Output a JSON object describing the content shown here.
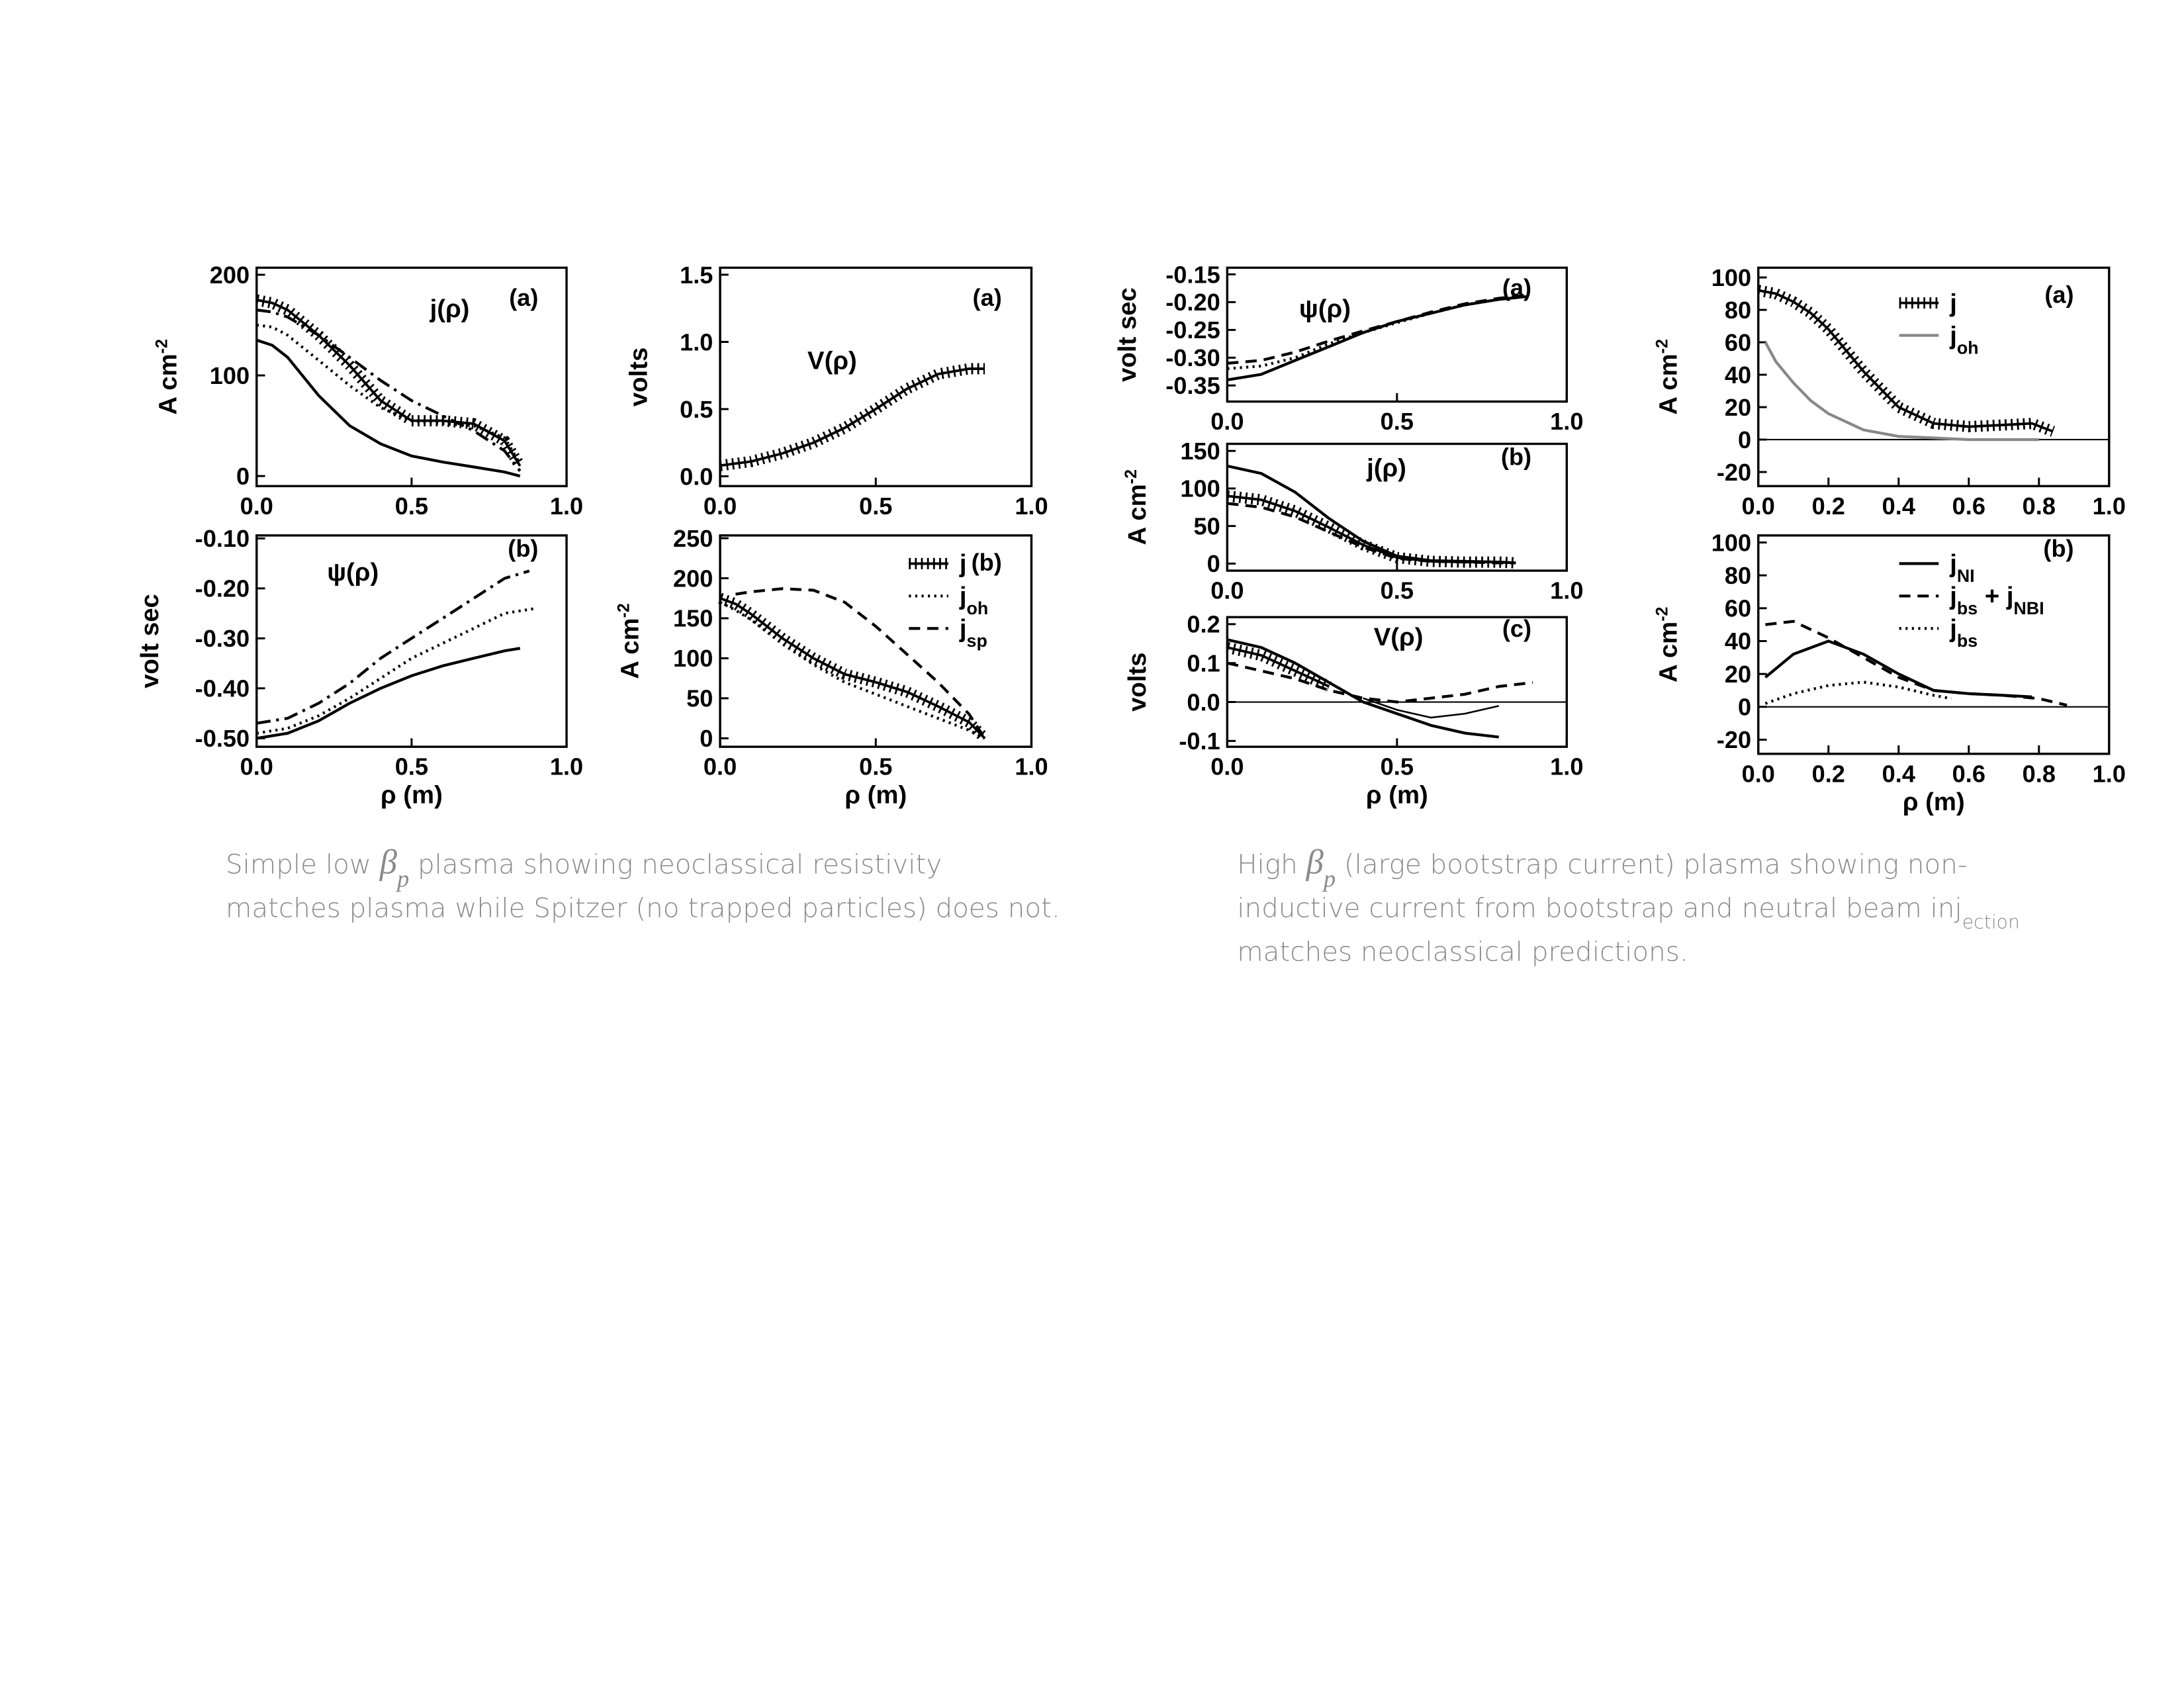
{
  "chart_data": [
    {
      "type": "line",
      "title": "j(ρ)",
      "panel": "(a)",
      "ylabel": "A cm-2",
      "xlim": [
        0,
        1
      ],
      "ylim": [
        -10,
        207
      ],
      "xticks": [
        {
          "value": 0,
          "label": "0.0"
        },
        0.5,
        {
          "value": 1,
          "label": "1.0"
        }
      ],
      "yticks": [
        0,
        100,
        200
      ],
      "series": [
        {
          "style": "solid",
          "color": "#000",
          "x": [
            0,
            0.05,
            0.1,
            0.2,
            0.3,
            0.4,
            0.5,
            0.6,
            0.7,
            0.8,
            0.85
          ],
          "values": [
            135,
            130,
            118,
            80,
            50,
            32,
            20,
            14,
            9,
            4,
            0
          ]
        },
        {
          "style": "hatched",
          "color": "#000",
          "x": [
            0,
            0.05,
            0.1,
            0.2,
            0.3,
            0.4,
            0.5,
            0.6,
            0.7,
            0.8,
            0.85
          ],
          "values": [
            175,
            172,
            165,
            140,
            110,
            75,
            55,
            55,
            52,
            35,
            10
          ]
        },
        {
          "style": "dashdot",
          "color": "#000",
          "x": [
            0,
            0.05,
            0.1,
            0.2,
            0.3,
            0.4,
            0.5,
            0.6,
            0.7,
            0.8,
            0.85
          ],
          "values": [
            165,
            163,
            158,
            140,
            118,
            95,
            75,
            60,
            45,
            25,
            5
          ]
        },
        {
          "style": "dotted",
          "color": "#000",
          "x": [
            0,
            0.05,
            0.1,
            0.2,
            0.3,
            0.4,
            0.5,
            0.6,
            0.7,
            0.8,
            0.85
          ],
          "values": [
            150,
            148,
            140,
            115,
            90,
            68,
            55,
            52,
            50,
            38,
            12
          ]
        }
      ]
    },
    {
      "type": "line",
      "title": "ψ(ρ)",
      "panel": "(b)",
      "ylabel": "volt sec",
      "xlabel": "ρ (m)",
      "xlim": [
        0,
        1
      ],
      "ylim": [
        -0.517,
        -0.094
      ],
      "xticks": [
        {
          "value": 0,
          "label": "0.0"
        },
        0.5,
        {
          "value": 1,
          "label": "1.0"
        }
      ],
      "yticks": [
        {
          "value": -0.1,
          "label": "-0.10"
        },
        {
          "value": -0.2,
          "label": "-0.20"
        },
        {
          "value": -0.3,
          "label": "-0.30"
        },
        {
          "value": -0.4,
          "label": "-0.40"
        },
        {
          "value": -0.5,
          "label": "-0.50"
        }
      ],
      "series": [
        {
          "style": "dashdot",
          "color": "#000",
          "x": [
            0,
            0.1,
            0.2,
            0.3,
            0.4,
            0.5,
            0.6,
            0.7,
            0.8,
            0.88
          ],
          "values": [
            -0.47,
            -0.46,
            -0.43,
            -0.39,
            -0.34,
            -0.3,
            -0.26,
            -0.22,
            -0.18,
            -0.165
          ]
        },
        {
          "style": "dotted",
          "color": "#000",
          "x": [
            0,
            0.1,
            0.2,
            0.3,
            0.4,
            0.5,
            0.6,
            0.7,
            0.8,
            0.9
          ],
          "values": [
            -0.49,
            -0.48,
            -0.455,
            -0.42,
            -0.38,
            -0.34,
            -0.31,
            -0.28,
            -0.25,
            -0.24
          ]
        },
        {
          "style": "solid",
          "color": "#000",
          "x": [
            0,
            0.1,
            0.2,
            0.3,
            0.4,
            0.5,
            0.6,
            0.7,
            0.8,
            0.85
          ],
          "values": [
            -0.5,
            -0.49,
            -0.465,
            -0.43,
            -0.4,
            -0.375,
            -0.355,
            -0.34,
            -0.325,
            -0.32
          ]
        }
      ]
    },
    {
      "type": "line",
      "title": "V(ρ)",
      "panel": "(a)",
      "ylabel": "volts",
      "xlim": [
        0,
        1
      ],
      "ylim": [
        -0.073,
        1.552
      ],
      "xticks": [
        {
          "value": 0,
          "label": "0.0"
        },
        0.5,
        {
          "value": 1,
          "label": "1.0"
        }
      ],
      "yticks": [
        {
          "value": 0,
          "label": "0.0"
        },
        0.5,
        {
          "value": 1,
          "label": "1.0"
        },
        1.5
      ],
      "series": [
        {
          "style": "hatched",
          "color": "#000",
          "x": [
            0,
            0.1,
            0.2,
            0.3,
            0.4,
            0.5,
            0.6,
            0.7,
            0.8,
            0.85
          ],
          "values": [
            0.08,
            0.11,
            0.17,
            0.25,
            0.36,
            0.5,
            0.65,
            0.76,
            0.8,
            0.8
          ]
        }
      ]
    },
    {
      "type": "line",
      "panel": "(b)",
      "ylabel": "A cm-2",
      "xlabel": "ρ (m)",
      "xlim": [
        0,
        1
      ],
      "ylim": [
        -10.6,
        253.5
      ],
      "xticks": [
        {
          "value": 0,
          "label": "0.0"
        },
        0.5,
        {
          "value": 1,
          "label": "1.0"
        }
      ],
      "yticks": [
        0,
        50,
        100,
        150,
        200,
        250
      ],
      "series": [
        {
          "name": "j",
          "style": "hatched",
          "color": "#000",
          "x": [
            0,
            0.05,
            0.1,
            0.2,
            0.3,
            0.4,
            0.5,
            0.6,
            0.7,
            0.8,
            0.85
          ],
          "values": [
            175,
            168,
            155,
            125,
            100,
            80,
            70,
            58,
            40,
            20,
            0
          ]
        },
        {
          "name": "joh",
          "style": "dotted",
          "color": "#000",
          "x": [
            0,
            0.05,
            0.1,
            0.2,
            0.3,
            0.4,
            0.5,
            0.6,
            0.7,
            0.8,
            0.85
          ],
          "values": [
            170,
            160,
            148,
            118,
            92,
            70,
            55,
            40,
            25,
            10,
            0
          ]
        },
        {
          "name": "jsp",
          "style": "dashed",
          "color": "#000",
          "x": [
            0.05,
            0.1,
            0.2,
            0.3,
            0.4,
            0.5,
            0.6,
            0.7,
            0.8,
            0.85
          ],
          "values": [
            180,
            183,
            187,
            185,
            170,
            140,
            105,
            70,
            30,
            0
          ]
        }
      ]
    },
    {
      "type": "line",
      "title": "ψ(ρ)",
      "panel": "(a)",
      "ylabel": "volt sec",
      "xlim": [
        0,
        1
      ],
      "ylim": [
        -0.379,
        -0.138
      ],
      "xticks": [
        {
          "value": 0,
          "label": "0.0"
        },
        0.5,
        {
          "value": 1,
          "label": "1.0"
        }
      ],
      "yticks": [
        -0.15,
        {
          "value": -0.2,
          "label": "-0.20"
        },
        -0.25,
        {
          "value": -0.3,
          "label": "-0.30"
        },
        -0.35
      ],
      "series": [
        {
          "style": "solid",
          "color": "#000",
          "x": [
            0,
            0.1,
            0.2,
            0.3,
            0.4,
            0.5,
            0.6,
            0.7,
            0.8,
            0.88
          ],
          "values": [
            -0.34,
            -0.33,
            -0.305,
            -0.28,
            -0.255,
            -0.235,
            -0.22,
            -0.205,
            -0.195,
            -0.19
          ]
        },
        {
          "style": "dashed",
          "color": "#000",
          "x": [
            0,
            0.1,
            0.2,
            0.3,
            0.4,
            0.5,
            0.6,
            0.7,
            0.8,
            0.88
          ],
          "values": [
            -0.31,
            -0.305,
            -0.29,
            -0.27,
            -0.252,
            -0.235,
            -0.218,
            -0.203,
            -0.193,
            -0.188
          ]
        },
        {
          "style": "dotted",
          "color": "#000",
          "x": [
            0,
            0.1,
            0.2,
            0.3,
            0.4,
            0.5,
            0.6,
            0.7,
            0.8,
            0.88
          ],
          "values": [
            -0.32,
            -0.315,
            -0.3,
            -0.275,
            -0.255,
            -0.237,
            -0.22,
            -0.205,
            -0.195,
            -0.19
          ]
        }
      ]
    },
    {
      "type": "line",
      "title": "j(ρ)",
      "panel": "(b)",
      "ylabel": "A cm-2",
      "xlim": [
        0,
        1
      ],
      "ylim": [
        -9.4,
        159.4
      ],
      "xticks": [
        {
          "value": 0,
          "label": "0.0"
        },
        0.5,
        {
          "value": 1,
          "label": "1.0"
        }
      ],
      "yticks": [
        0,
        50,
        100,
        150
      ],
      "series": [
        {
          "style": "solid",
          "color": "#000",
          "x": [
            0,
            0.1,
            0.2,
            0.3,
            0.4,
            0.5,
            0.6,
            0.7,
            0.8,
            0.85
          ],
          "values": [
            130,
            120,
            95,
            60,
            30,
            10,
            4,
            3,
            2,
            1
          ]
        },
        {
          "style": "hatched",
          "color": "#000",
          "x": [
            0,
            0.1,
            0.2,
            0.3,
            0.4,
            0.5,
            0.6,
            0.7,
            0.8,
            0.85
          ],
          "values": [
            90,
            85,
            70,
            48,
            25,
            8,
            3,
            2,
            2,
            1
          ]
        },
        {
          "style": "dashed",
          "color": "#000",
          "x": [
            0,
            0.1,
            0.2,
            0.3,
            0.4,
            0.5,
            0.6,
            0.7,
            0.8,
            0.85
          ],
          "values": [
            80,
            75,
            62,
            42,
            22,
            7,
            3,
            2,
            1,
            1
          ]
        }
      ]
    },
    {
      "type": "line",
      "title": "V(ρ)",
      "panel": "(c)",
      "ylabel": "volts",
      "xlabel": "ρ (m)",
      "zero_line": true,
      "xlim": [
        0,
        1
      ],
      "ylim": [
        -0.115,
        0.218
      ],
      "xticks": [
        {
          "value": 0,
          "label": "0.0"
        },
        0.5,
        {
          "value": 1,
          "label": "1.0"
        }
      ],
      "yticks": [
        -0.1,
        {
          "value": 0,
          "label": "0.0"
        },
        0.1,
        0.2
      ],
      "series": [
        {
          "style": "solid",
          "color": "#000",
          "x": [
            0,
            0.1,
            0.2,
            0.3,
            0.4,
            0.5,
            0.6,
            0.7,
            0.8
          ],
          "values": [
            0.16,
            0.14,
            0.1,
            0.05,
            0,
            -0.03,
            -0.06,
            -0.08,
            -0.09
          ]
        },
        {
          "style": "hatched",
          "color": "#000",
          "x": [
            0,
            0.1,
            0.2,
            0.3
          ],
          "values": [
            0.14,
            0.12,
            0.08,
            0.04
          ]
        },
        {
          "style": "dashed",
          "color": "#000",
          "x": [
            0,
            0.1,
            0.2,
            0.3,
            0.4,
            0.5,
            0.6,
            0.7,
            0.8,
            0.9
          ],
          "values": [
            0.1,
            0.08,
            0.06,
            0.03,
            0.01,
            0,
            0.01,
            0.02,
            0.04,
            0.05
          ]
        },
        {
          "style": "thin",
          "color": "#000",
          "x": [
            0.4,
            0.5,
            0.6,
            0.7,
            0.8
          ],
          "values": [
            0.01,
            -0.02,
            -0.04,
            -0.03,
            -0.01
          ]
        }
      ]
    },
    {
      "type": "line",
      "panel": "(a)",
      "ylabel": "A cm-2",
      "zero_line": true,
      "xlim": [
        0,
        1
      ],
      "ylim": [
        -28.7,
        106
      ],
      "xticks": [
        {
          "value": 0,
          "label": "0.0"
        },
        0.2,
        0.4,
        0.6,
        0.8,
        {
          "value": 1,
          "label": "1.0"
        }
      ],
      "yticks": [
        -20,
        0,
        20,
        40,
        60,
        80,
        100
      ],
      "series": [
        {
          "name": "j",
          "style": "hatched",
          "color": "#000",
          "x": [
            0,
            0.05,
            0.1,
            0.15,
            0.2,
            0.3,
            0.4,
            0.5,
            0.6,
            0.7,
            0.78,
            0.84
          ],
          "values": [
            92,
            90,
            85,
            78,
            68,
            42,
            20,
            10,
            8,
            9,
            10,
            5
          ]
        },
        {
          "name": "joh",
          "style": "solid",
          "color": "#888888",
          "x": [
            0.02,
            0.05,
            0.1,
            0.15,
            0.2,
            0.3,
            0.4,
            0.5,
            0.6,
            0.8
          ],
          "values": [
            60,
            48,
            35,
            24,
            16,
            6,
            2,
            1,
            0,
            0
          ]
        }
      ]
    },
    {
      "type": "line",
      "panel": "(b)",
      "ylabel": "A cm-2",
      "xlabel": "ρ (m)",
      "zero_line": true,
      "xlim": [
        0,
        1
      ],
      "ylim": [
        -28.6,
        104.3
      ],
      "xticks": [
        {
          "value": 0,
          "label": "0.0"
        },
        0.2,
        0.4,
        0.6,
        0.8,
        {
          "value": 1,
          "label": "1.0"
        }
      ],
      "yticks": [
        -20,
        0,
        20,
        40,
        60,
        80,
        100
      ],
      "series": [
        {
          "name": "jNI",
          "style": "solid",
          "color": "#000",
          "x": [
            0.02,
            0.1,
            0.2,
            0.3,
            0.4,
            0.5,
            0.6,
            0.7,
            0.78
          ],
          "values": [
            18,
            32,
            40,
            32,
            20,
            10,
            8,
            7,
            6
          ]
        },
        {
          "name": "jbs + jNBI",
          "style": "dashed",
          "color": "#000",
          "x": [
            0.02,
            0.1,
            0.2,
            0.3,
            0.4,
            0.5,
            0.6,
            0.7,
            0.8,
            0.88
          ],
          "values": [
            50,
            52,
            42,
            30,
            18,
            10,
            8,
            7,
            5,
            1
          ]
        },
        {
          "name": "jbs",
          "style": "dotted",
          "color": "#000",
          "x": [
            0.02,
            0.1,
            0.2,
            0.3,
            0.4,
            0.5,
            0.55
          ],
          "values": [
            2,
            8,
            13,
            15,
            12,
            7,
            5
          ]
        }
      ]
    }
  ],
  "captions": [
    {
      "lines": [
        "Simple low βp plasma showing neoclassical resistivity",
        "matches plasma while Spitzer (no trapped particles) does not."
      ]
    },
    {
      "lines": [
        "High βp (large bootstrap current)  plasma showing non-",
        "inductive current from bootstrap and neutral beam injection",
        "matches neoclassical predictions."
      ]
    }
  ]
}
